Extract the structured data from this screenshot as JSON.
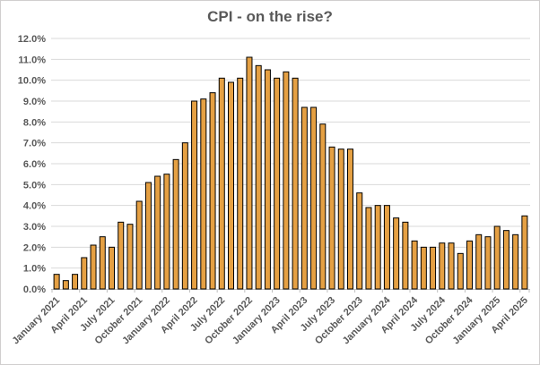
{
  "chart_data": {
    "type": "bar",
    "title": "CPI - on the rise?",
    "categories": [
      "January 2021",
      "February 2021",
      "March 2021",
      "April 2021",
      "May 2021",
      "June 2021",
      "July 2021",
      "August 2021",
      "September 2021",
      "October 2021",
      "November 2021",
      "December 2021",
      "January 2022",
      "February 2022",
      "March 2022",
      "April 2022",
      "May 2022",
      "June 2022",
      "July 2022",
      "August 2022",
      "September 2022",
      "October 2022",
      "November 2022",
      "December 2022",
      "January 2023",
      "February 2023",
      "March 2023",
      "April 2023",
      "May 2023",
      "June 2023",
      "July 2023",
      "August 2023",
      "September 2023",
      "October 2023",
      "November 2023",
      "December 2023",
      "January 2024",
      "February 2024",
      "March 2024",
      "April 2024",
      "May 2024",
      "June 2024",
      "July 2024",
      "August 2024",
      "September 2024",
      "October 2024",
      "November 2024",
      "December 2024",
      "January 2025",
      "February 2025",
      "March 2025",
      "April 2025"
    ],
    "values": [
      0.7,
      0.4,
      0.7,
      1.5,
      2.1,
      2.5,
      2.0,
      3.2,
      3.1,
      4.2,
      5.1,
      5.4,
      5.5,
      6.2,
      7.0,
      9.0,
      9.1,
      9.4,
      10.1,
      9.9,
      10.1,
      11.1,
      10.7,
      10.5,
      10.1,
      10.4,
      10.1,
      8.7,
      8.7,
      7.9,
      6.8,
      6.7,
      6.7,
      4.6,
      3.9,
      4.0,
      4.0,
      3.4,
      3.2,
      2.3,
      2.0,
      2.0,
      2.2,
      2.2,
      1.7,
      2.3,
      2.6,
      2.5,
      3.0,
      2.8,
      2.6,
      3.5
    ],
    "xlabel": "",
    "ylabel": "",
    "ylim": [
      0,
      12
    ],
    "y_tick_step": 1,
    "y_tick_labels": [
      "0.0%",
      "1.0%",
      "2.0%",
      "3.0%",
      "4.0%",
      "5.0%",
      "6.0%",
      "7.0%",
      "8.0%",
      "9.0%",
      "10.0%",
      "11.0%",
      "12.0%"
    ],
    "x_tick_interval": 3,
    "x_axis_visible_labels": [
      "January 2021",
      "April 2021",
      "July 2021",
      "October 2021",
      "January 2022",
      "April 2022",
      "July 2022",
      "October 2022",
      "January 2023",
      "April 2023",
      "July 2023",
      "October 2023",
      "January 2024",
      "April 2024",
      "July 2024",
      "October 2024",
      "January 2025",
      "April 2025"
    ],
    "grid": true,
    "legend": "none",
    "colors": {
      "bar_fill": "#E5A043",
      "bar_stroke": "#000000",
      "gridline": "#D9D9D9",
      "axis_line": "#BFBFBF",
      "tick_text": "#595959",
      "title_text": "#595959",
      "background": "#FFFFFF",
      "chart_border": "#D0CECE"
    }
  }
}
